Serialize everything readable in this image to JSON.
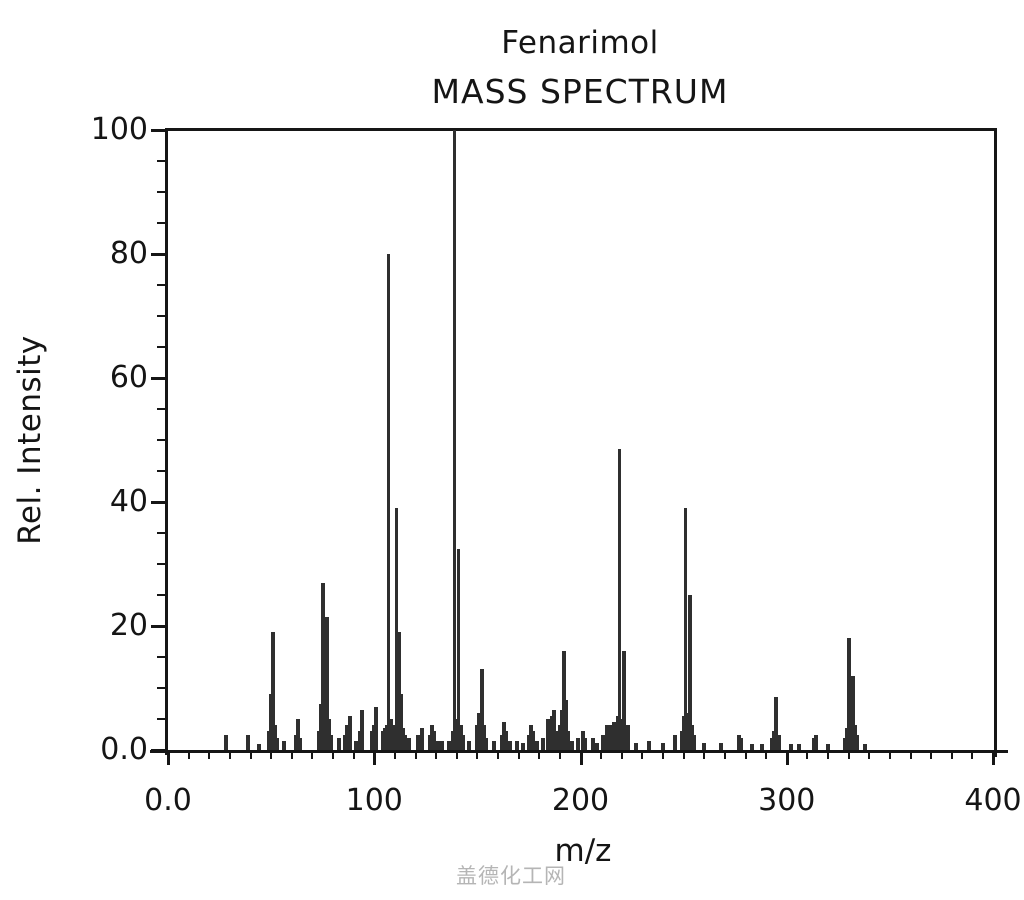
{
  "chart_data": {
    "type": "bar",
    "title": "Fenarimol",
    "subtitle": "MASS SPECTRUM",
    "xlabel": "m/z",
    "ylabel": "Rel. Intensity",
    "xlim": [
      0,
      400
    ],
    "ylim": [
      0,
      100
    ],
    "grid": "off",
    "frame": "boxed",
    "bar_color": "#2f2f2f",
    "axis_color": "#161616",
    "x_ticks": [
      {
        "value": 0,
        "label": "0.0"
      },
      {
        "value": 100,
        "label": "100"
      },
      {
        "value": 200,
        "label": "200"
      },
      {
        "value": 300,
        "label": "300"
      },
      {
        "value": 400,
        "label": "400"
      }
    ],
    "y_ticks": [
      {
        "value": 0,
        "label": "0.0"
      },
      {
        "value": 20,
        "label": "20"
      },
      {
        "value": 40,
        "label": "40"
      },
      {
        "value": 60,
        "label": "60"
      },
      {
        "value": 80,
        "label": "80"
      },
      {
        "value": 100,
        "label": "100"
      }
    ],
    "x_minor_step": 10,
    "y_minor_step": 5,
    "peaks": [
      [
        28,
        2.5
      ],
      [
        39,
        2.5
      ],
      [
        44,
        1
      ],
      [
        49,
        3
      ],
      [
        50,
        9
      ],
      [
        51,
        19
      ],
      [
        52,
        4
      ],
      [
        53,
        2
      ],
      [
        56,
        1.5
      ],
      [
        62,
        2.5
      ],
      [
        63,
        5
      ],
      [
        64,
        2
      ],
      [
        73,
        3
      ],
      [
        74,
        7.5
      ],
      [
        75,
        27
      ],
      [
        76,
        10
      ],
      [
        77,
        21.5
      ],
      [
        78,
        5
      ],
      [
        79,
        2.5
      ],
      [
        83,
        2
      ],
      [
        86,
        2.5
      ],
      [
        87,
        4
      ],
      [
        88,
        5.5
      ],
      [
        91,
        1.5
      ],
      [
        93,
        3
      ],
      [
        94,
        6.5
      ],
      [
        99,
        3
      ],
      [
        100,
        4
      ],
      [
        101,
        7
      ],
      [
        104,
        3
      ],
      [
        105,
        3.5
      ],
      [
        106,
        4
      ],
      [
        107,
        80
      ],
      [
        108,
        5
      ],
      [
        109,
        3
      ],
      [
        110,
        4
      ],
      [
        111,
        39
      ],
      [
        112,
        19
      ],
      [
        113,
        9
      ],
      [
        114,
        3.5
      ],
      [
        115,
        2.5
      ],
      [
        117,
        2
      ],
      [
        121,
        2.5
      ],
      [
        123,
        3.5
      ],
      [
        127,
        2.5
      ],
      [
        128,
        4
      ],
      [
        129,
        3
      ],
      [
        131,
        1.5
      ],
      [
        133,
        1.5
      ],
      [
        136,
        1.5
      ],
      [
        138,
        3
      ],
      [
        139,
        100
      ],
      [
        140,
        5
      ],
      [
        141,
        32.5
      ],
      [
        142,
        4
      ],
      [
        143,
        2.5
      ],
      [
        146,
        1.5
      ],
      [
        150,
        4
      ],
      [
        151,
        6
      ],
      [
        152,
        13
      ],
      [
        153,
        4
      ],
      [
        154,
        2
      ],
      [
        158,
        1.5
      ],
      [
        162,
        2.5
      ],
      [
        163,
        4.5
      ],
      [
        164,
        3
      ],
      [
        166,
        1.5
      ],
      [
        169,
        1.5
      ],
      [
        172,
        1.2
      ],
      [
        175,
        2.5
      ],
      [
        176,
        4
      ],
      [
        177,
        3
      ],
      [
        179,
        1.5
      ],
      [
        182,
        2
      ],
      [
        184,
        5
      ],
      [
        185,
        4
      ],
      [
        186,
        5.5
      ],
      [
        187,
        6.5
      ],
      [
        188,
        3
      ],
      [
        190,
        4
      ],
      [
        191,
        6.5
      ],
      [
        192,
        16
      ],
      [
        193,
        8
      ],
      [
        194,
        3
      ],
      [
        196,
        1.5
      ],
      [
        199,
        2
      ],
      [
        201,
        3
      ],
      [
        202,
        2
      ],
      [
        206,
        2
      ],
      [
        208,
        1.2
      ],
      [
        211,
        2.5
      ],
      [
        213,
        4
      ],
      [
        215,
        4
      ],
      [
        216,
        4.5
      ],
      [
        217,
        3
      ],
      [
        218,
        5.5
      ],
      [
        219,
        48.5
      ],
      [
        220,
        5
      ],
      [
        221,
        16
      ],
      [
        222,
        3.5
      ],
      [
        223,
        4
      ],
      [
        227,
        1.2
      ],
      [
        233,
        1.5
      ],
      [
        240,
        1.2
      ],
      [
        246,
        2.5
      ],
      [
        249,
        3
      ],
      [
        250,
        5.5
      ],
      [
        251,
        39
      ],
      [
        252,
        6
      ],
      [
        253,
        25
      ],
      [
        254,
        4
      ],
      [
        255,
        2.5
      ],
      [
        260,
        1.2
      ],
      [
        268,
        1.2
      ],
      [
        277,
        2.5
      ],
      [
        278,
        2
      ],
      [
        283,
        1
      ],
      [
        288,
        1
      ],
      [
        293,
        2
      ],
      [
        294,
        3
      ],
      [
        295,
        8.5
      ],
      [
        296,
        2.5
      ],
      [
        302,
        1
      ],
      [
        306,
        1
      ],
      [
        313,
        2
      ],
      [
        314,
        2.5
      ],
      [
        320,
        1
      ],
      [
        328,
        2
      ],
      [
        329,
        3.5
      ],
      [
        330,
        18
      ],
      [
        331,
        5
      ],
      [
        332,
        12
      ],
      [
        333,
        4
      ],
      [
        334,
        2.5
      ],
      [
        338,
        1
      ]
    ]
  },
  "watermark": {
    "text": "盖德化工网",
    "color": "#b5b5b5"
  }
}
